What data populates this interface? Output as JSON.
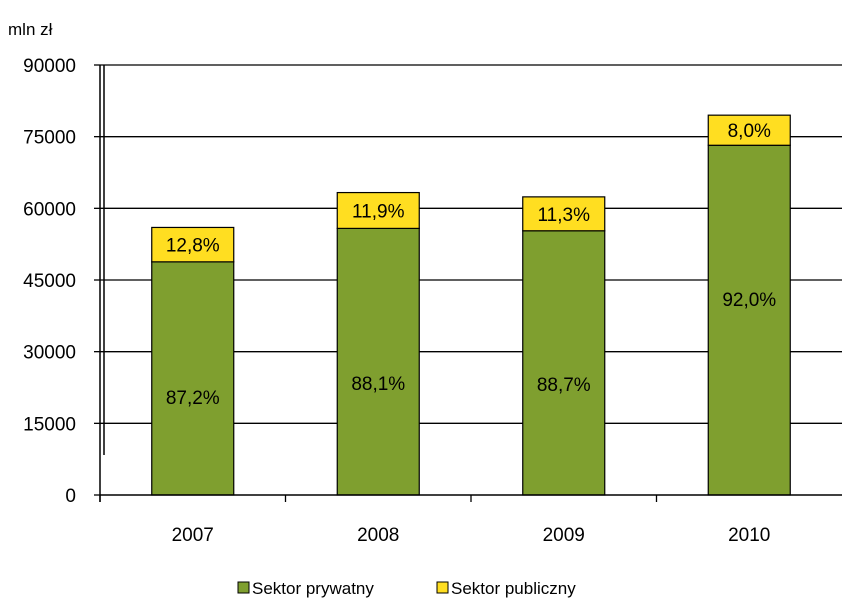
{
  "chart_data": {
    "type": "bar",
    "stacked": true,
    "unit_label": "mln zł",
    "categories": [
      "2007",
      "2008",
      "2009",
      "2010"
    ],
    "series": [
      {
        "name": "Sektor prywatny",
        "color": "#7f9f2f",
        "values": [
          48800,
          55800,
          55300,
          73200
        ],
        "labels": [
          "87,2%",
          "88,1%",
          "88,7%",
          "92,0%"
        ]
      },
      {
        "name": "Sektor publiczny",
        "color": "#ffde21",
        "values": [
          7200,
          7500,
          7100,
          6300
        ],
        "labels": [
          "12,8%",
          "11,9%",
          "11,3%",
          "8,0%"
        ]
      }
    ],
    "yticks": [
      "0",
      "15000",
      "30000",
      "45000",
      "60000",
      "75000",
      "90000"
    ],
    "ylim": [
      0,
      90000
    ],
    "grid": true,
    "legend_position": "bottom"
  }
}
